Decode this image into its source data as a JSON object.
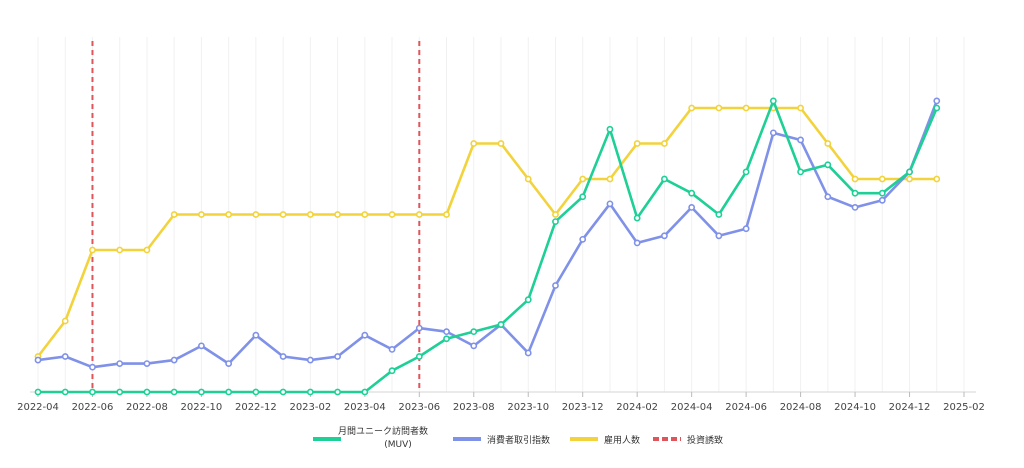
{
  "chart_data": {
    "type": "line",
    "x_tick_labels": [
      "2022-04",
      "2022-06",
      "2022-08",
      "2022-10",
      "2022-12",
      "2023-02",
      "2023-04",
      "2023-06",
      "2023-08",
      "2023-10",
      "2023-12",
      "2024-02",
      "2024-04",
      "2024-06",
      "2024-08",
      "2024-10",
      "2024-12",
      "2025-02"
    ],
    "xlim": [
      "2022-04",
      "2025-02"
    ],
    "ylim": [
      0,
      100
    ],
    "grid": "vertical",
    "legend_position": "bottom",
    "months": [
      "2022-04",
      "2022-05",
      "2022-06",
      "2022-07",
      "2022-08",
      "2022-09",
      "2022-10",
      "2022-11",
      "2022-12",
      "2023-01",
      "2023-02",
      "2023-03",
      "2023-04",
      "2023-05",
      "2023-06",
      "2023-07",
      "2023-08",
      "2023-09",
      "2023-10",
      "2023-11",
      "2023-12",
      "2024-01",
      "2024-02",
      "2024-03",
      "2024-04",
      "2024-05",
      "2024-06",
      "2024-07",
      "2024-08",
      "2024-09",
      "2024-10",
      "2024-11",
      "2024-12",
      "2025-01"
    ],
    "series": [
      {
        "name": "月間ユニーク訪問者数\n(MUV)",
        "color": "#1ecf96",
        "values": [
          0,
          0,
          0,
          0,
          0,
          0,
          0,
          0,
          0,
          0,
          0,
          0,
          0,
          6,
          10,
          15,
          17,
          19,
          26,
          48,
          55,
          74,
          49,
          60,
          56,
          50,
          62,
          82,
          62,
          64,
          56,
          56,
          62,
          80
        ]
      },
      {
        "name": "消費者取引指数",
        "color": "#7f91e8",
        "values": [
          9,
          10,
          7,
          8,
          8,
          9,
          13,
          8,
          16,
          10,
          9,
          10,
          16,
          12,
          18,
          17,
          13,
          19,
          11,
          30,
          43,
          53,
          42,
          44,
          52,
          44,
          46,
          73,
          71,
          55,
          52,
          54,
          62,
          82
        ]
      },
      {
        "name": "雇用人数",
        "color": "#f2d33b",
        "values": [
          10,
          20,
          40,
          40,
          40,
          50,
          50,
          50,
          50,
          50,
          50,
          50,
          50,
          50,
          50,
          50,
          70,
          70,
          60,
          50,
          60,
          60,
          70,
          70,
          80,
          80,
          80,
          80,
          80,
          70,
          60,
          60,
          60,
          60
        ]
      }
    ],
    "annotations": {
      "name": "投資誘致",
      "color": "#e0555b",
      "style": "dashed",
      "dates": [
        "2022-06",
        "2023-06"
      ]
    }
  }
}
